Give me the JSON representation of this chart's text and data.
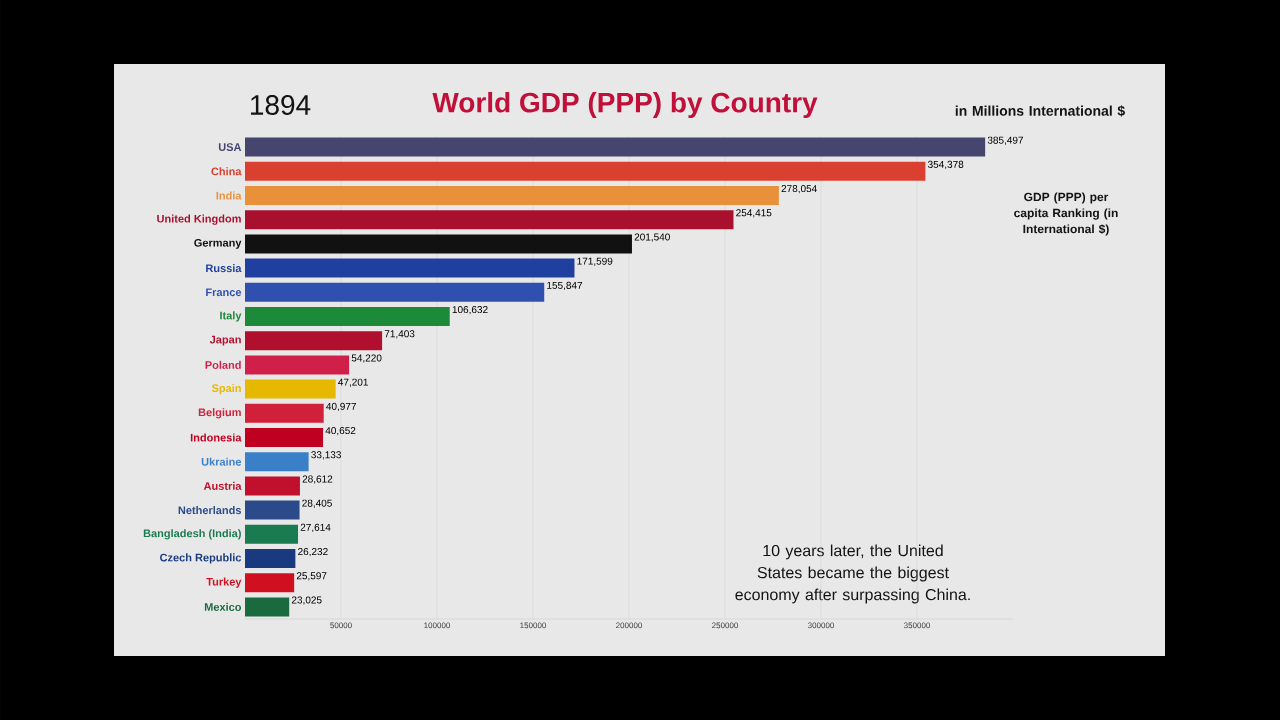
{
  "chart_data": {
    "type": "bar",
    "orientation": "horizontal",
    "title": "World GDP (PPP) by Country",
    "subtitle": "1894",
    "categories": [
      "USA",
      "China",
      "India",
      "United Kingdom",
      "Germany",
      "Russia",
      "France",
      "Italy",
      "Japan",
      "Poland",
      "Spain",
      "Belgium",
      "Indonesia",
      "Ukraine",
      "Austria",
      "Netherlands",
      "Bangladesh (India)",
      "Czech Republic",
      "Turkey",
      "Mexico"
    ],
    "values": [
      385497,
      354378,
      278054,
      254415,
      201540,
      171599,
      155847,
      106632,
      71403,
      54220,
      47201,
      40977,
      40652,
      33133,
      28612,
      28405,
      27614,
      26232,
      25597,
      23025
    ],
    "value_labels": [
      "385,497",
      "354,378",
      "278,054",
      "254,415",
      "201,540",
      "171,599",
      "155,847",
      "106,632",
      "71,403",
      "54,220",
      "47,201",
      "40,977",
      "40,652",
      "33,133",
      "28,612",
      "28,405",
      "27,614",
      "26,232",
      "25,597",
      "23,025"
    ],
    "colors": [
      "#45456e",
      "#d9402f",
      "#e8913a",
      "#a8102e",
      "#111111",
      "#2040a0",
      "#3050b0",
      "#1d8a3a",
      "#b0102e",
      "#d0204a",
      "#e6b800",
      "#d0203a",
      "#c00020",
      "#3a80c8",
      "#c0102e",
      "#2a4a8a",
      "#1a7a50",
      "#1a3a80",
      "#d01020",
      "#1a6a40"
    ],
    "xlim": [
      0,
      400000
    ],
    "xticks": [
      50000,
      100000,
      150000,
      200000,
      250000,
      300000,
      350000
    ],
    "grid": "x",
    "annotations": [
      "in Millions International $",
      "GDP (PPP) per capita Ranking (in International $)",
      "10 years later, the United States became the biggest economy after surpassing China."
    ]
  }
}
